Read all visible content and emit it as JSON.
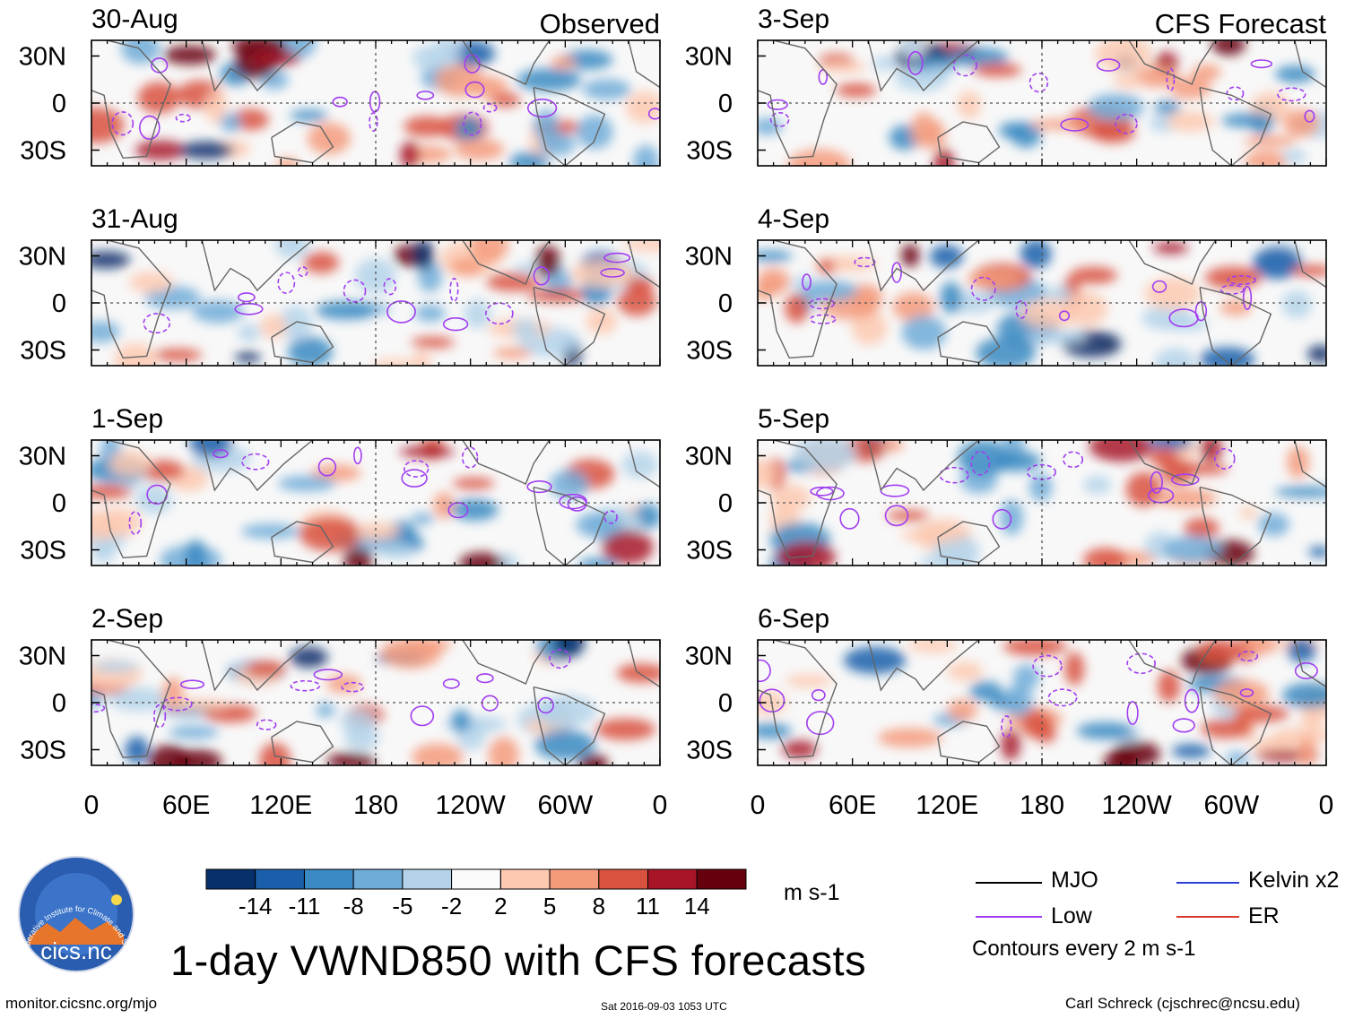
{
  "chart_data": {
    "type": "heatmap",
    "title": "1-day VWND850 with CFS forecasts",
    "variable": "VWND850",
    "units": "m s-1",
    "columns": [
      {
        "label": "Observed",
        "panels": [
          "30-Aug",
          "31-Aug",
          "1-Sep",
          "2-Sep"
        ]
      },
      {
        "label": "CFS Forecast",
        "panels": [
          "3-Sep",
          "4-Sep",
          "5-Sep",
          "6-Sep"
        ]
      }
    ],
    "x_ticks": [
      "0",
      "60E",
      "120E",
      "180",
      "120W",
      "60W",
      "0"
    ],
    "y_ticks": [
      "30N",
      "0",
      "30S"
    ],
    "lat_range": [
      -40,
      40
    ],
    "lon_range": [
      0,
      360
    ],
    "colorbar": {
      "levels": [
        "-14",
        "-11",
        "-8",
        "-5",
        "-2",
        "2",
        "5",
        "8",
        "11",
        "14"
      ],
      "colors": [
        "#08306b",
        "#1b5faa",
        "#3a89c2",
        "#70acd8",
        "#b4d3ea",
        "#fbfbfb",
        "#fdc9b0",
        "#f49b7c",
        "#d9523f",
        "#a81529",
        "#67000d"
      ]
    },
    "contour_legend": [
      {
        "name": "MJO",
        "color": "#000000"
      },
      {
        "name": "Kelvin x2",
        "color": "#2a3fd4"
      },
      {
        "name": "Low",
        "color": "#a13ef0"
      },
      {
        "name": "ER",
        "color": "#d93a2b"
      }
    ],
    "contour_note": "Contours every 2 m s-1"
  },
  "footer": {
    "url": "monitor.cicsnc.org/mjo",
    "timestamp": "Sat 2016-09-03 1053 UTC",
    "author": "Carl Schreck (cjschrec@ncsu.edu)"
  },
  "logo": {
    "text": "cics.nc",
    "ring_text": "Cooperative Institute for Climate and Satellites"
  }
}
